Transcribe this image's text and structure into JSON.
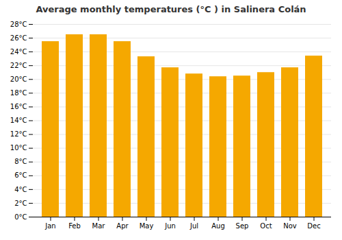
{
  "chart_data": {
    "type": "bar",
    "title": "Average monthly temperatures (°C ) in Salinera Colán",
    "categories": [
      "Jan",
      "Feb",
      "Mar",
      "Apr",
      "May",
      "Jun",
      "Jul",
      "Aug",
      "Sep",
      "Oct",
      "Nov",
      "Dec"
    ],
    "values": [
      25.5,
      26.5,
      26.5,
      25.5,
      23.3,
      21.7,
      20.8,
      20.4,
      20.5,
      21.0,
      21.7,
      23.4
    ],
    "color": "#F5A800",
    "ylim": [
      0,
      28
    ],
    "yticks": [
      {
        "value": 0,
        "label": "0°C"
      },
      {
        "value": 2,
        "label": "2°C"
      },
      {
        "value": 4,
        "label": "4°C"
      },
      {
        "value": 6,
        "label": "6°C"
      },
      {
        "value": 8,
        "label": "8°C"
      },
      {
        "value": 10,
        "label": "10°C"
      },
      {
        "value": 12,
        "label": "12°C"
      },
      {
        "value": 14,
        "label": "14°C"
      },
      {
        "value": 16,
        "label": "16°C"
      },
      {
        "value": 18,
        "label": "18°C"
      },
      {
        "value": 20,
        "label": "20°C"
      },
      {
        "value": 22,
        "label": "22°C"
      },
      {
        "value": 24,
        "label": "24°C"
      },
      {
        "value": 26,
        "label": "26°C"
      },
      {
        "value": 28,
        "label": "28°C"
      }
    ],
    "grid": true
  }
}
